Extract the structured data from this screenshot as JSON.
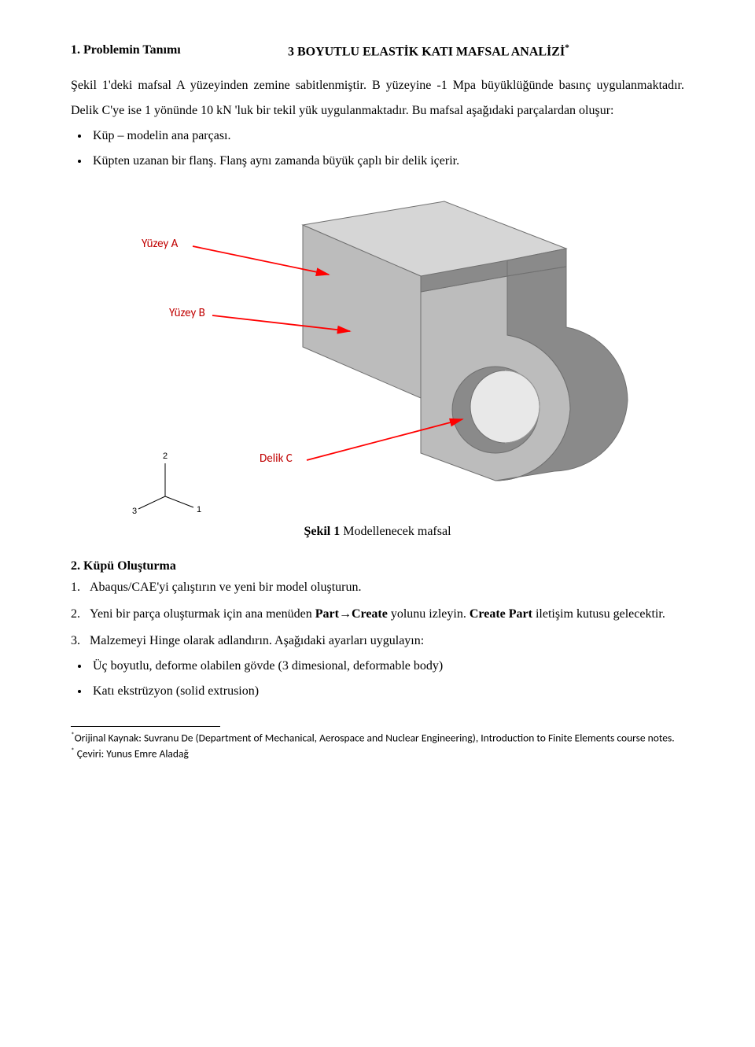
{
  "title": "3 BOYUTLU ELASTİK KATI MAFSAL ANALİZİ",
  "title_sup": "*",
  "section1_heading": "1. Problemin Tanımı",
  "para1": "Şekil 1'deki mafsal A yüzeyinden zemine  sabitlenmiştir. B yüzeyine -1 Mpa büyüklüğünde basınç uygulanmaktadır. Delik C'ye ise 1 yönünde 10 kN 'luk bir tekil yük uygulanmaktadır. Bu mafsal aşağıdaki parçalardan oluşur:",
  "bullets1": [
    "Küp – modelin ana parçası.",
    "Küpten uzanan bir flanş. Flanş aynı zamanda büyük çaplı bir delik içerir."
  ],
  "figure": {
    "labels": {
      "A": "Yüzey A",
      "B": "Yüzey B",
      "C": "Delik C"
    },
    "label_color": "#c00000",
    "arrow_color": "#ff0000",
    "solid_color_light": "#bcbcbc",
    "solid_color_dark": "#8a8a8a",
    "solid_color_top": "#d6d6d6",
    "outline_color": "#707070",
    "hole_inner": "#e8e8e8",
    "triad": {
      "1": "1",
      "2": "2",
      "3": "3",
      "stroke": "#000000"
    },
    "caption_prefix": "Şekil 1",
    "caption_rest": " Modellenecek mafsal"
  },
  "section2_heading": "2. Küpü Oluşturma",
  "steps": [
    "Abaqus/CAE'yi çalıştırın ve yeni bir model oluşturun.",
    "Yeni bir parça oluşturmak için ana menüden Part→Create yolunu izleyin. Create Part iletişim kutusu gelecektir.",
    "Malzemeyi Hinge olarak adlandırın. Aşağıdaki ayarları uygulayın:"
  ],
  "step_prefixes": [
    "1.",
    "2.",
    "3."
  ],
  "bold_tokens": {
    "part_create": "Part→Create",
    "create_part": "Create Part"
  },
  "bullets2": [
    "Üç boyutlu, deforme olabilen gövde (3 dimesional, deformable body)",
    "Katı ekstrüzyon (solid extrusion)"
  ],
  "footnotes": {
    "f1_star": "*",
    "f1": "Orijinal Kaynak: Suvranu De  (Department of Mechanical, Aerospace  and Nuclear Engineering), Introduction to Finite Elements course notes.",
    "f2_star": "*",
    "f2": " Çeviri: Yunus Emre Aladağ"
  }
}
